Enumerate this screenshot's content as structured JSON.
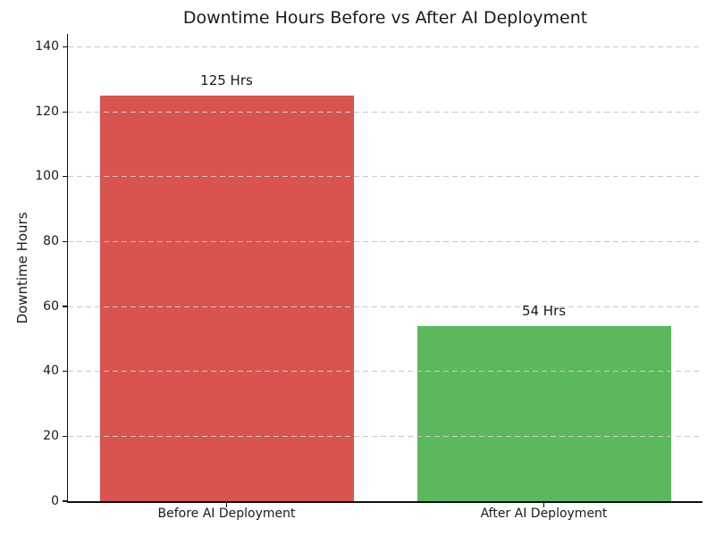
{
  "chart_data": {
    "type": "bar",
    "title": "Downtime Hours Before vs After AI Deployment",
    "categories": [
      "Before AI Deployment",
      "After AI Deployment"
    ],
    "values": [
      125,
      54
    ],
    "value_labels": [
      "125 Hrs",
      "54 Hrs"
    ],
    "bar_colors": [
      "#d9534f",
      "#5cb85c"
    ],
    "xlabel": "",
    "ylabel": "Downtime Hours",
    "yticks": [
      0,
      20,
      40,
      60,
      80,
      100,
      120,
      140
    ],
    "ylim": [
      0,
      144
    ],
    "bar_width_fraction": 0.8,
    "grid": "horizontal-dashed",
    "grid_color": "#c9c9c9",
    "legend": "none",
    "text_color": "#1a1a1a",
    "background_color": "#ffffff"
  }
}
